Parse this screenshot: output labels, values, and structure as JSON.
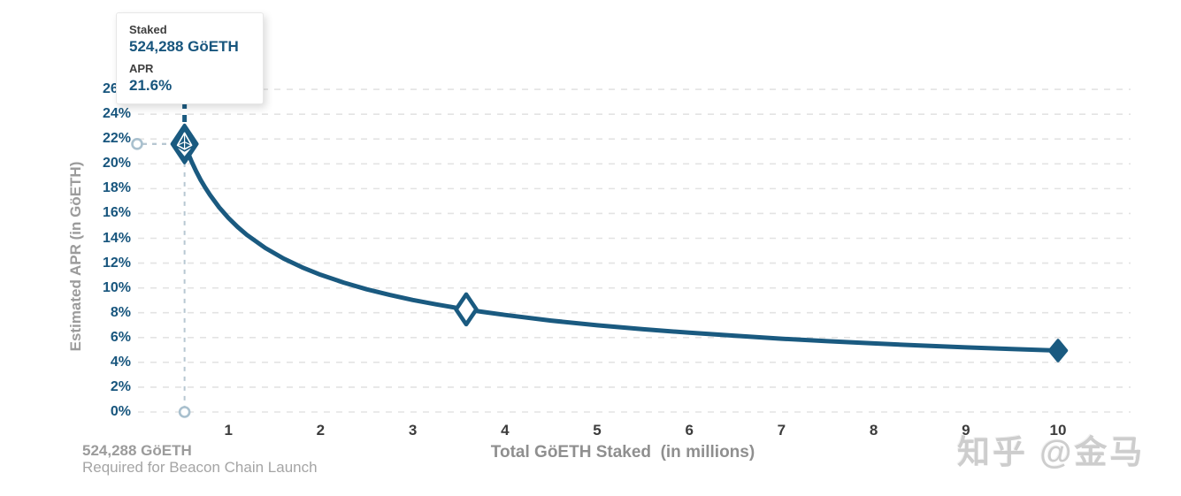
{
  "tooltip": {
    "staked_label": "Staked",
    "staked_value": "524,288 GöETH",
    "apr_label": "APR",
    "apr_value": "21.6%"
  },
  "annotation": {
    "line1": "524,288 GöETH",
    "line2": "Required for Beacon Chain Launch"
  },
  "watermark": "知乎 @金马",
  "colors": {
    "curve": "#1a5a80",
    "tick_blue": "#17557d",
    "tick_dark": "#3c3c3c",
    "axis_title_gray": "#8f8f8f",
    "gridline": "#e3e3e3",
    "guide_dash": "#b7c7d2",
    "guide_circle": "#a9c0ce",
    "marker_fill": "#1a5a80",
    "background": "#ffffff"
  },
  "chart_data": {
    "type": "line",
    "title": "",
    "xlabel": "Total GöETH Staked  (in millions)",
    "ylabel": "Estimated APR (in GöETH)",
    "xlim": [
      0,
      10.8
    ],
    "ylim": [
      0,
      26
    ],
    "grid": "horizontal-dashed",
    "legend": "none",
    "x_ticks": [
      "1",
      "2",
      "3",
      "4",
      "5",
      "6",
      "7",
      "8",
      "9",
      "10"
    ],
    "x_tick_values": [
      1,
      2,
      3,
      4,
      5,
      6,
      7,
      8,
      9,
      10
    ],
    "y_ticks": [
      "0%",
      "2%",
      "4%",
      "6%",
      "8%",
      "10%",
      "12%",
      "14%",
      "16%",
      "18%",
      "20%",
      "22%",
      "24%",
      "26%"
    ],
    "y_tick_values": [
      0,
      2,
      4,
      6,
      8,
      10,
      12,
      14,
      16,
      18,
      20,
      22,
      24,
      26
    ],
    "series": [
      {
        "name": "Estimated APR curve",
        "formula": "APR% = 21.6 * sqrt(0.524288 / staked_millions)",
        "points": [
          [
            0.524288,
            21.6
          ],
          [
            0.55,
            21.09
          ],
          [
            0.6,
            20.19
          ],
          [
            0.65,
            19.4
          ],
          [
            0.7,
            18.69
          ],
          [
            0.75,
            18.06
          ],
          [
            0.8,
            17.49
          ],
          [
            0.9,
            16.49
          ],
          [
            1.0,
            15.64
          ],
          [
            1.1,
            14.91
          ],
          [
            1.2,
            14.28
          ],
          [
            1.4,
            13.22
          ],
          [
            1.6,
            12.36
          ],
          [
            1.8,
            11.66
          ],
          [
            2.0,
            11.06
          ],
          [
            2.25,
            10.43
          ],
          [
            2.5,
            9.89
          ],
          [
            2.75,
            9.43
          ],
          [
            3.0,
            9.03
          ],
          [
            3.25,
            8.68
          ],
          [
            3.5,
            8.36
          ],
          [
            3.75,
            8.08
          ],
          [
            4.0,
            7.82
          ],
          [
            4.5,
            7.37
          ],
          [
            5.0,
            6.99
          ],
          [
            5.5,
            6.67
          ],
          [
            6.0,
            6.39
          ],
          [
            6.5,
            6.14
          ],
          [
            7.0,
            5.91
          ],
          [
            7.5,
            5.71
          ],
          [
            8.0,
            5.53
          ],
          [
            8.5,
            5.36
          ],
          [
            9.0,
            5.21
          ],
          [
            9.5,
            5.07
          ],
          [
            10.0,
            4.95
          ]
        ]
      }
    ],
    "markers": [
      {
        "name": "current-stake-eth-marker",
        "x": 0.524288,
        "y": 21.6,
        "style": "eth-logo-diamond"
      },
      {
        "name": "mid-curve-marker",
        "x": 3.58,
        "y": 8.27,
        "style": "hollow-diamond"
      },
      {
        "name": "end-curve-marker",
        "x": 10.0,
        "y": 4.95,
        "style": "filled-diamond"
      }
    ],
    "hover_guides": {
      "vertical_dark_dash_above_marker": true,
      "vertical_light_dash_to_x_axis": true,
      "horizontal_light_dash_to_y_axis": true,
      "axis_circle_y_value": 21.6,
      "axis_circle_x_value": 0.524288
    }
  }
}
